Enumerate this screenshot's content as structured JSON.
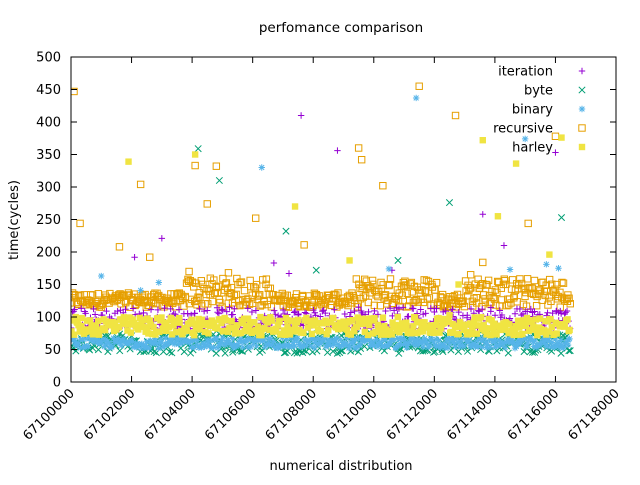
{
  "chart_data": {
    "type": "scatter",
    "title": "perfomance comparison",
    "xlabel": "numerical distribution",
    "ylabel": "time(cycles)",
    "xlim": [
      67100000,
      67118000
    ],
    "ylim": [
      0,
      500
    ],
    "x_ticks": [
      67100000,
      67102000,
      67104000,
      67106000,
      67108000,
      67110000,
      67112000,
      67114000,
      67116000,
      67118000
    ],
    "y_ticks": [
      0,
      50,
      100,
      150,
      200,
      250,
      300,
      350,
      400,
      450,
      500
    ],
    "grid": false,
    "legend_position": "top-right",
    "dense_x_range": [
      67100000,
      67116500
    ],
    "series": [
      {
        "name": "iteration",
        "marker": "plus",
        "color": "#9400d3",
        "band": [
          82,
          115
        ],
        "outliers": [
          [
            67102100,
            192
          ],
          [
            67103000,
            221
          ],
          [
            67106700,
            183
          ],
          [
            67107200,
            167
          ],
          [
            67107600,
            410
          ],
          [
            67108800,
            356
          ],
          [
            67110600,
            172
          ],
          [
            67113600,
            258
          ],
          [
            67114300,
            210
          ],
          [
            67116000,
            353
          ],
          [
            67101800,
            112
          ],
          [
            67104500,
            110
          ],
          [
            67109500,
            115
          ],
          [
            67112000,
            113
          ]
        ]
      },
      {
        "name": "byte",
        "marker": "x",
        "color": "#009e73",
        "band": [
          44,
          75
        ],
        "outliers": [
          [
            67104200,
            359
          ],
          [
            67104900,
            310
          ],
          [
            67107100,
            232
          ],
          [
            67108100,
            172
          ],
          [
            67110800,
            187
          ],
          [
            67112500,
            276
          ],
          [
            67116200,
            253
          ],
          [
            67101400,
            80
          ],
          [
            67106000,
            78
          ],
          [
            67113000,
            82
          ]
        ]
      },
      {
        "name": "binary",
        "marker": "star",
        "color": "#56b4e9",
        "band": [
          52,
          68
        ],
        "outliers": [
          [
            67106300,
            330
          ],
          [
            67111400,
            437
          ],
          [
            67115000,
            374
          ],
          [
            67110500,
            174
          ],
          [
            67114500,
            173
          ],
          [
            67115700,
            181
          ],
          [
            67116100,
            175
          ],
          [
            67101000,
            163
          ],
          [
            67102900,
            153
          ],
          [
            67102300,
            141
          ]
        ]
      },
      {
        "name": "recursive",
        "marker": "square-open",
        "color": "#e69f00",
        "band": [
          115,
          160
        ],
        "outliers": [
          [
            67100100,
            447
          ],
          [
            67100300,
            244
          ],
          [
            67101600,
            208
          ],
          [
            67102300,
            304
          ],
          [
            67102600,
            192
          ],
          [
            67104100,
            333
          ],
          [
            67104500,
            274
          ],
          [
            67104800,
            332
          ],
          [
            67106100,
            252
          ],
          [
            67107700,
            211
          ],
          [
            67109500,
            360
          ],
          [
            67109600,
            342
          ],
          [
            67110300,
            302
          ],
          [
            67111500,
            455
          ],
          [
            67112700,
            410
          ],
          [
            67113600,
            184
          ],
          [
            67115100,
            244
          ],
          [
            67116000,
            378
          ],
          [
            67103900,
            170
          ],
          [
            67105200,
            168
          ],
          [
            67113200,
            165
          ]
        ]
      },
      {
        "name": "harley",
        "marker": "square-filled",
        "color": "#f0e442",
        "band": [
          72,
          100
        ],
        "outliers": [
          [
            67101900,
            339
          ],
          [
            67104100,
            350
          ],
          [
            67107400,
            270
          ],
          [
            67109200,
            187
          ],
          [
            67112500,
            103
          ],
          [
            67113600,
            372
          ],
          [
            67114100,
            255
          ],
          [
            67114700,
            336
          ],
          [
            67115800,
            196
          ],
          [
            67116200,
            376
          ],
          [
            67112800,
            150
          ]
        ]
      }
    ]
  }
}
